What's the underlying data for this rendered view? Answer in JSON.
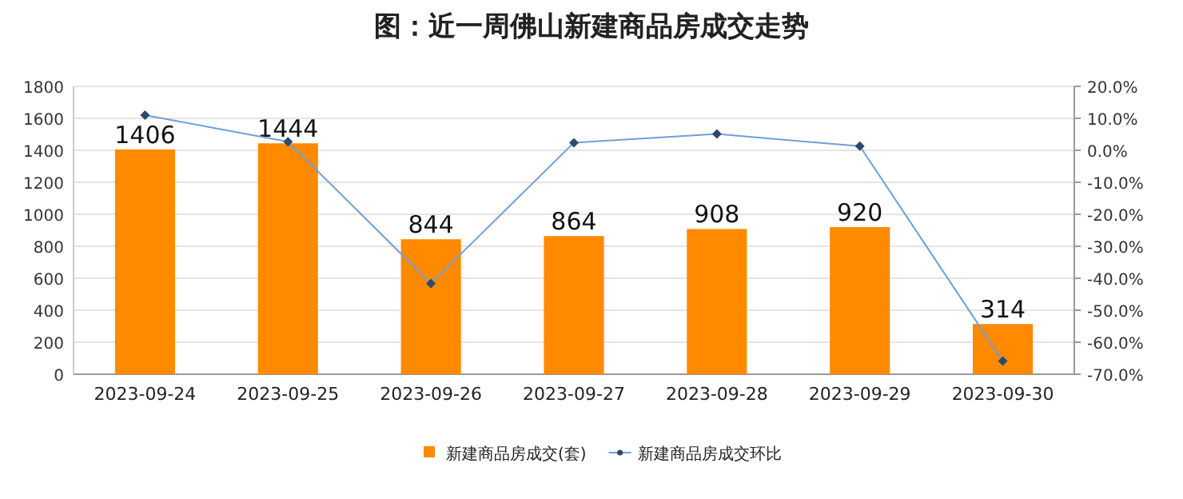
{
  "chart_data": {
    "type": "bar",
    "title": "图：近一周佛山新建商品房成交走势",
    "categories": [
      "2023-09-24",
      "2023-09-25",
      "2023-09-26",
      "2023-09-27",
      "2023-09-28",
      "2023-09-29",
      "2023-09-30"
    ],
    "series": [
      {
        "name": "新建商品房成交(套)",
        "color": "#ff8a00",
        "values": [
          1406,
          1444,
          844,
          864,
          908,
          920,
          314
        ],
        "data_labels": true
      },
      {
        "name": "新建商品房成交环比",
        "type": "line",
        "axis": "y2",
        "color": "#6f9fd8",
        "marker": "diamond",
        "values": [
          11.0,
          2.7,
          -41.6,
          2.4,
          5.1,
          1.3,
          -65.9
        ]
      }
    ],
    "ylim": [
      0,
      1800
    ],
    "yticks": [
      0,
      200,
      400,
      600,
      800,
      1000,
      1200,
      1400,
      1600,
      1800
    ],
    "y2lim": [
      -70,
      20
    ],
    "y2ticks": [
      {
        "value": -70,
        "label": "-70.0%"
      },
      {
        "value": -60,
        "label": "-60.0%"
      },
      {
        "value": -50,
        "label": "-50.0%"
      },
      {
        "value": -40,
        "label": "-40.0%"
      },
      {
        "value": -30,
        "label": "-30.0%"
      },
      {
        "value": -20,
        "label": "-20.0%"
      },
      {
        "value": -10,
        "label": "-10.0%"
      },
      {
        "value": 0,
        "label": "0.0%"
      },
      {
        "value": 10,
        "label": "10.0%"
      },
      {
        "value": 20,
        "label": "20.0%"
      }
    ],
    "grid": "y",
    "legend": "bottom"
  }
}
